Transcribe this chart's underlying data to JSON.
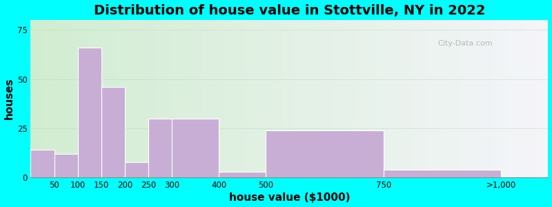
{
  "title": "Distribution of house value in Stottville, NY in 2022",
  "xlabel": "house value ($1000)",
  "ylabel": "houses",
  "bar_lefts": [
    0,
    50,
    100,
    150,
    200,
    250,
    300,
    400,
    500,
    750,
    1000
  ],
  "bar_widths": [
    50,
    50,
    50,
    50,
    50,
    50,
    100,
    100,
    250,
    250,
    100
  ],
  "bar_values": [
    14,
    12,
    66,
    46,
    8,
    30,
    30,
    3,
    24,
    4,
    0
  ],
  "xtick_positions": [
    50,
    100,
    150,
    200,
    250,
    300,
    400,
    500,
    750,
    1000
  ],
  "xtick_labels": [
    "50",
    "100",
    "150",
    "200",
    "250",
    "300",
    "400",
    "500",
    "750",
    ">1,000"
  ],
  "bar_color": "#c8aed4",
  "bar_edgecolor": "#ffffff",
  "ylim": [
    0,
    80
  ],
  "yticks": [
    0,
    25,
    50,
    75
  ],
  "outer_background": "#00ffff",
  "title_fontsize": 14,
  "axis_label_fontsize": 11,
  "watermark_text": "City-Data.com"
}
